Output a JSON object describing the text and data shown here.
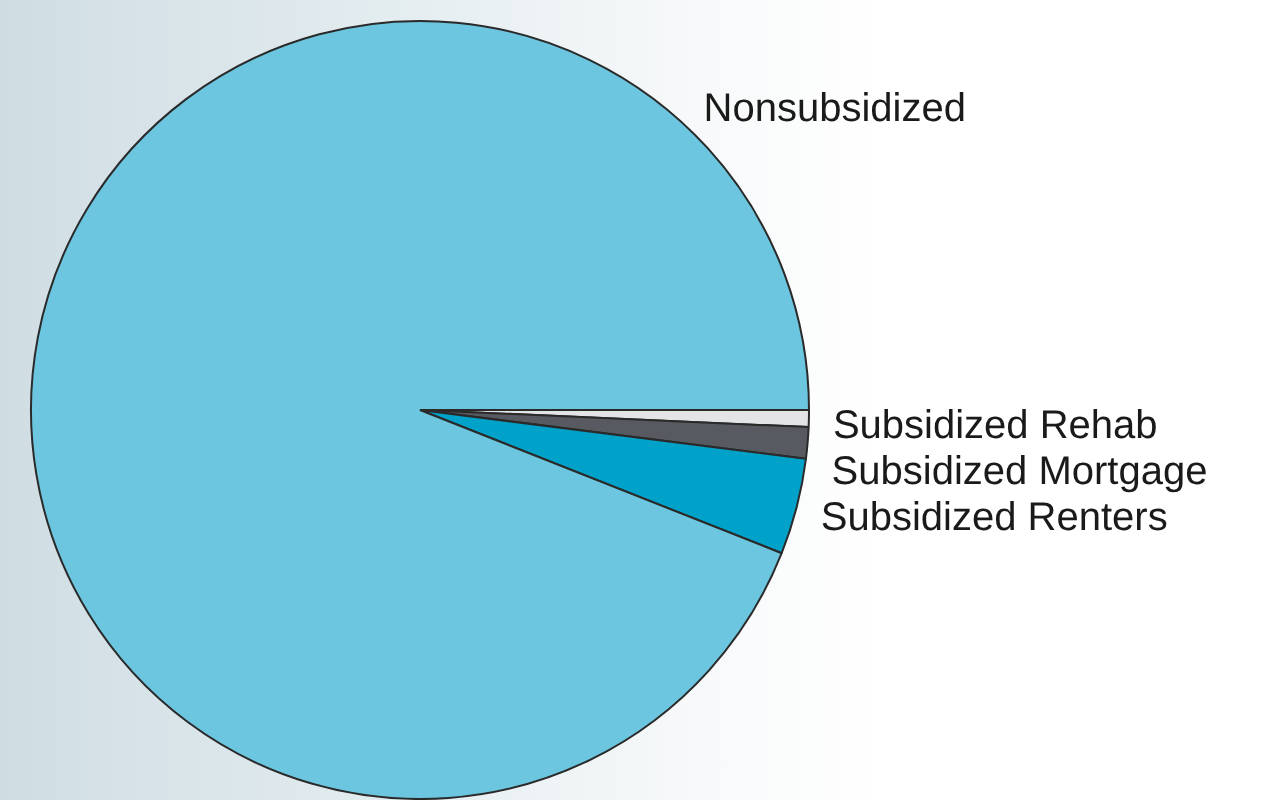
{
  "chart_data": {
    "type": "pie",
    "categories": [
      "Subsidized Rehab",
      "Subsidized Mortgage",
      "Subsidized Renters",
      "Nonsubsidized"
    ],
    "values": [
      0.7,
      1.3,
      4.0,
      94.0
    ],
    "colors": [
      "#e2e4e6",
      "#575b61",
      "#00a2c9",
      "#6cc6df"
    ]
  }
}
